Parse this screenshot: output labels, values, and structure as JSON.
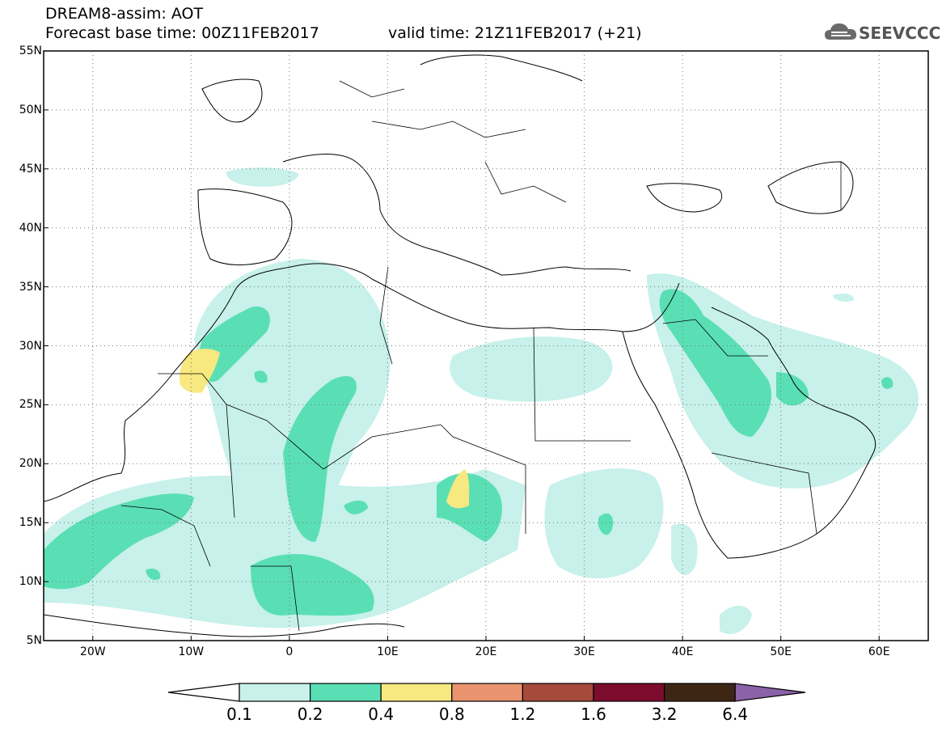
{
  "header": {
    "title_line1": "DREAM8-assim: AOT",
    "title_line2": "Forecast base time: 00Z11FEB2017",
    "valid_time": "valid time: 21Z11FEB2017 (+21)",
    "logo_text": "SEEVCCC"
  },
  "map": {
    "lat_labels": [
      "55N",
      "50N",
      "45N",
      "40N",
      "35N",
      "30N",
      "25N",
      "20N",
      "15N",
      "10N",
      "5N"
    ],
    "lon_labels": [
      "20W",
      "10W",
      "0",
      "10E",
      "20E",
      "30E",
      "40E",
      "50E",
      "60E"
    ],
    "lon_range": [
      -25,
      65
    ],
    "lat_range": [
      5,
      55
    ]
  },
  "legend": {
    "levels": [
      "0.1",
      "0.2",
      "0.4",
      "0.8",
      "1.2",
      "1.6",
      "3.2",
      "6.4"
    ],
    "colors": [
      "#ffffff",
      "#c7f1ea",
      "#5adfb4",
      "#f7e87f",
      "#e9946e",
      "#a64a3c",
      "#7c0d2e",
      "#3e2615",
      "#8a62a8"
    ]
  },
  "colors": {
    "aot_0_1": "#c7f1ea",
    "aot_0_2": "#5adfb4",
    "aot_0_4": "#f7e87f"
  }
}
